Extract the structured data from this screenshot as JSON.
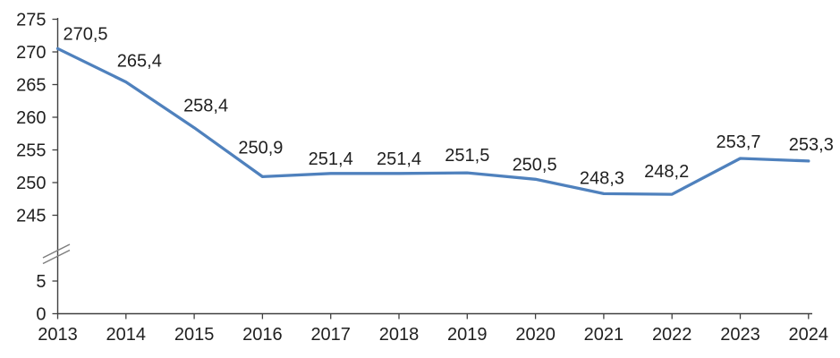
{
  "chart": {
    "background": "#ffffff"
  },
  "chart_data": {
    "type": "line",
    "title": "",
    "xlabel": "",
    "ylabel": "",
    "categories": [
      "2013",
      "2014",
      "2015",
      "2016",
      "2017",
      "2018",
      "2019",
      "2020",
      "2021",
      "2022",
      "2023",
      "2024"
    ],
    "series": [
      {
        "name": "series-1",
        "values": [
          270.5,
          265.4,
          258.4,
          250.9,
          251.4,
          251.4,
          251.5,
          250.5,
          248.3,
          248.2,
          253.7,
          253.3
        ],
        "labels": [
          "270,5",
          "265,4",
          "258,4",
          "250,9",
          "251,4",
          "251,4",
          "251,5",
          "250,5",
          "248,3",
          "248,2",
          "253,7",
          "253,3"
        ]
      }
    ],
    "decimal_separator": ",",
    "grid": false,
    "legend": "none",
    "y_axis": {
      "has_axis_break": true,
      "tick_values_upper": [
        275,
        270,
        265,
        260,
        255,
        250,
        245
      ],
      "tick_labels_upper": [
        "275",
        "270",
        "265",
        "260",
        "255",
        "250",
        "245"
      ],
      "tick_values_lower": [
        5,
        0
      ],
      "tick_labels_lower": [
        "5",
        "0"
      ],
      "upper_range_shown": [
        245,
        275
      ],
      "lower_range_shown": [
        0,
        5
      ]
    },
    "x_axis": {
      "tick_labels": [
        "2013",
        "2014",
        "2015",
        "2016",
        "2017",
        "2018",
        "2019",
        "2020",
        "2021",
        "2022",
        "2023",
        "2024"
      ]
    },
    "colors": {
      "line": "#4F81BD",
      "text": "#1f1f1f",
      "axis": "#404040",
      "break_mark": "#7f7f7f"
    },
    "label_offsets": [
      {
        "dx": 31,
        "gap": 10
      },
      {
        "dx": 15,
        "gap": 17
      },
      {
        "dx": 13,
        "gap": 18
      },
      {
        "dx": -2,
        "gap": 26
      },
      {
        "dx": 0,
        "gap": 10
      },
      {
        "dx": 0,
        "gap": 10
      },
      {
        "dx": 0,
        "gap": 13
      },
      {
        "dx": -1,
        "gap": 10
      },
      {
        "dx": -2,
        "gap": 11
      },
      {
        "dx": -6,
        "gap": 19
      },
      {
        "dx": -2,
        "gap": 12
      },
      {
        "dx": 3,
        "gap": 12
      }
    ]
  }
}
